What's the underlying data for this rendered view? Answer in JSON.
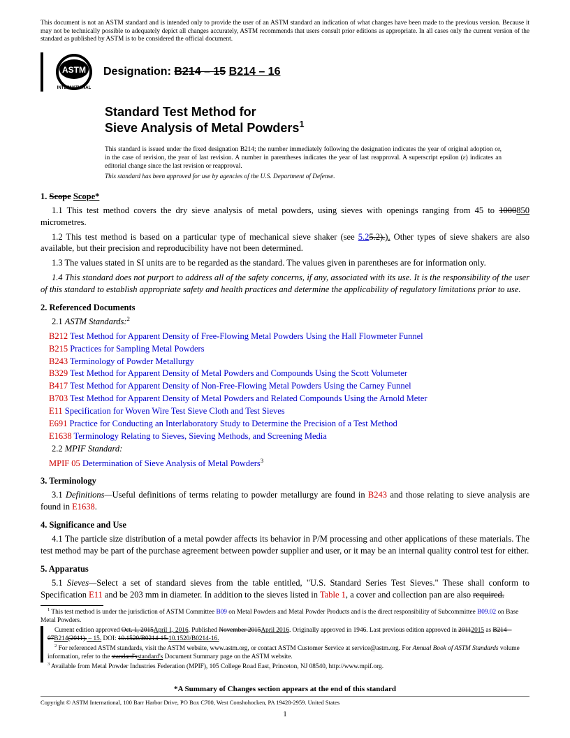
{
  "disclaimer": "This document is not an ASTM standard and is intended only to provide the user of an ASTM standard an indication of what changes have been made to the previous version. Because it may not be technically possible to adequately depict all changes accurately, ASTM recommends that users consult prior editions as appropriate. In all cases only the current version of the standard as published by ASTM is to be considered the official document.",
  "designation_label": "Designation:",
  "designation_old": "B214 – 15",
  "designation_new": "B214 – 16",
  "title_line1": "Standard Test Method for",
  "title_line2": "Sieve Analysis of Metal Powders",
  "title_sup": "1",
  "issue_note": "This standard is issued under the fixed designation B214; the number immediately following the designation indicates the year of original adoption or, in the case of revision, the year of last revision. A number in parentheses indicates the year of last reapproval. A superscript epsilon (ε) indicates an editorial change since the last revision or reapproval.",
  "dod_note": "This standard has been approved for use by agencies of the U.S. Department of Defense.",
  "s1_head_num": "1.",
  "s1_head_old": "Scope",
  "s1_head_new": "Scope*",
  "s1_1_a": "1.1 This test method covers the dry sieve analysis of metal powders, using sieves with openings ranging from 45 to ",
  "s1_1_old": "1000",
  "s1_1_new": "850",
  "s1_1_b": " micrometres.",
  "s1_2_a": "1.2 This test method is based on a particular type of mechanical sieve shaker (see ",
  "s1_2_ref": "5.2",
  "s1_2_old": "5.2).",
  "s1_2_new": ").",
  "s1_2_b": " Other types of sieve shakers are also available, but their precision and reproducibility have not been determined.",
  "s1_3": "1.3 The values stated in SI units are to be regarded as the standard. The values given in parentheses are for information only.",
  "s1_4": "1.4 This standard does not purport to address all of the safety concerns, if any, associated with its use. It is the responsibility of the user of this standard to establish appropriate safety and health practices and determine the applicability of regulatory limitations prior to use.",
  "s2_head": "2. Referenced Documents",
  "s2_1": "2.1 ",
  "s2_1_it": "ASTM Standards:",
  "s2_1_sup": "2",
  "refs": [
    {
      "code": "B212",
      "title": "Test Method for Apparent Density of Free-Flowing Metal Powders Using the Hall Flowmeter Funnel"
    },
    {
      "code": "B215",
      "title": "Practices for Sampling Metal Powders"
    },
    {
      "code": "B243",
      "title": "Terminology of Powder Metallurgy"
    },
    {
      "code": "B329",
      "title": "Test Method for Apparent Density of Metal Powders and Compounds Using the Scott Volumeter"
    },
    {
      "code": "B417",
      "title": "Test Method for Apparent Density of Non-Free-Flowing Metal Powders Using the Carney Funnel"
    },
    {
      "code": "B703",
      "title": "Test Method for Apparent Density of Metal Powders and Related Compounds Using the Arnold Meter"
    },
    {
      "code": "E11",
      "title": "Specification for Woven Wire Test Sieve Cloth and Test Sieves"
    },
    {
      "code": "E691",
      "title": "Practice for Conducting an Interlaboratory Study to Determine the Precision of a Test Method"
    },
    {
      "code": "E1638",
      "title": "Terminology Relating to Sieves, Sieving Methods, and Screening Media"
    }
  ],
  "s2_2": "2.2 ",
  "s2_2_it": "MPIF Standard:",
  "mpif_code": "MPIF 05",
  "mpif_title": "Determination of Sieve Analysis of Metal Powders",
  "mpif_sup": "3",
  "s3_head": "3. Terminology",
  "s3_1_a": "3.1 ",
  "s3_1_it": "Definitions—",
  "s3_1_b": "Useful definitions of terms relating to powder metallurgy are found in ",
  "s3_1_ref1": "B243",
  "s3_1_c": " and those relating to sieve analysis are found in ",
  "s3_1_ref2": "E1638",
  "s3_1_d": ".",
  "s4_head": "4. Significance and Use",
  "s4_1": "4.1 The particle size distribution of a metal powder affects its behavior in P/M processing and other applications of these materials. The test method may be part of the purchase agreement between powder supplier and user, or it may be an internal quality control test for either.",
  "s5_head": "5. Apparatus",
  "s5_1_a": "5.1 ",
  "s5_1_it": "Sieves—",
  "s5_1_b": "Select a set of standard sieves from the table entitled, \"U.S. Standard Series Test Sieves.\" These shall conform to Specification ",
  "s5_1_ref1": "E11",
  "s5_1_c": " and be 203 mm in diameter. In addition to the sieves listed in ",
  "s5_1_ref2": "Table 1",
  "s5_1_d": ", a cover and collection pan are also ",
  "s5_1_old": "required.",
  "fn1_a": " This test method is under the jurisdiction of ASTM Committee ",
  "fn1_ref1": "B09",
  "fn1_b": " on Metal Powders and Metal Powder Products and is the direct responsibility of Subcommittee ",
  "fn1_ref2": "B09.02",
  "fn1_c": " on Base Metal Powders.",
  "fn1_line2_a": "Current edition approved ",
  "fn1_l2_old1": "Oct. 1, 2015",
  "fn1_l2_new1": "April 1, 2016",
  "fn1_l2_b": ". Published ",
  "fn1_l2_old2": "November 2015",
  "fn1_l2_new2": "April 2016",
  "fn1_l2_c": ". Originally approved in 1946. Last previous edition approved in ",
  "fn1_l2_old3": "2011",
  "fn1_l2_new3": "2015",
  "fn1_l2_d": " as ",
  "fn1_l2_old4": "B214 – 07",
  "fn1_l2_new4": "B214",
  "fn1_l2_old5": "(2011).",
  "fn1_l2_new5": " – 15.",
  "fn1_l2_e": " DOI: ",
  "fn1_l2_old6": "10.1520/B0214-15.",
  "fn1_l2_new6": "10.1520/B0214-16.",
  "fn2_a": " For referenced ASTM standards, visit the ASTM website, www.astm.org, or contact ASTM Customer Service at service@astm.org. For ",
  "fn2_it": "Annual Book of ASTM Standards",
  "fn2_b": " volume information, refer to the ",
  "fn2_old": "standard's",
  "fn2_new": "standard's",
  "fn2_c": " Document Summary page on the ASTM website.",
  "fn3": " Available from Metal Powder Industries Federation (MPIF), 105 College Road East, Princeton, NJ 08540, http://www.mpif.org.",
  "summary_note": "*A Summary of Changes section appears at the end of this standard",
  "copyright": "Copyright © ASTM International, 100 Barr Harbor Drive, PO Box C700, West Conshohocken, PA 19428-2959. United States",
  "page_num": "1",
  "colors": {
    "red": "#cc0000",
    "blue": "#0000cc"
  }
}
